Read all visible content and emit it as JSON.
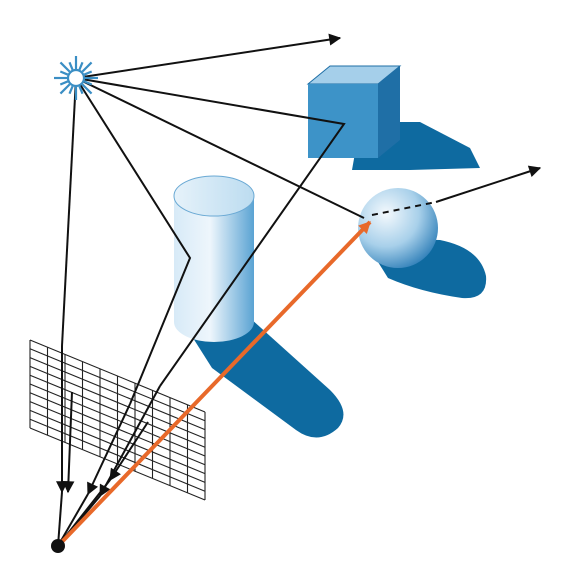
{
  "scene": {
    "colors": {
      "background": "#ffffff",
      "shadow": "#0e6aa0",
      "object_light": "#e8f3fb",
      "object_mid": "#a9cfe8",
      "object_dark": "#3f8fc4",
      "cube_front": "#3d93c8",
      "cube_top": "#9fcbe8",
      "cube_side": "#1f6fa6",
      "ray": "#111111",
      "highlight_ray": "#e8692a",
      "grid": "#222222",
      "light_source": "#3a8ec4"
    },
    "icons": {
      "light": "light-source-icon",
      "eye": "eye-point-icon"
    },
    "grid": {
      "rows": 10,
      "cols": 10
    }
  }
}
